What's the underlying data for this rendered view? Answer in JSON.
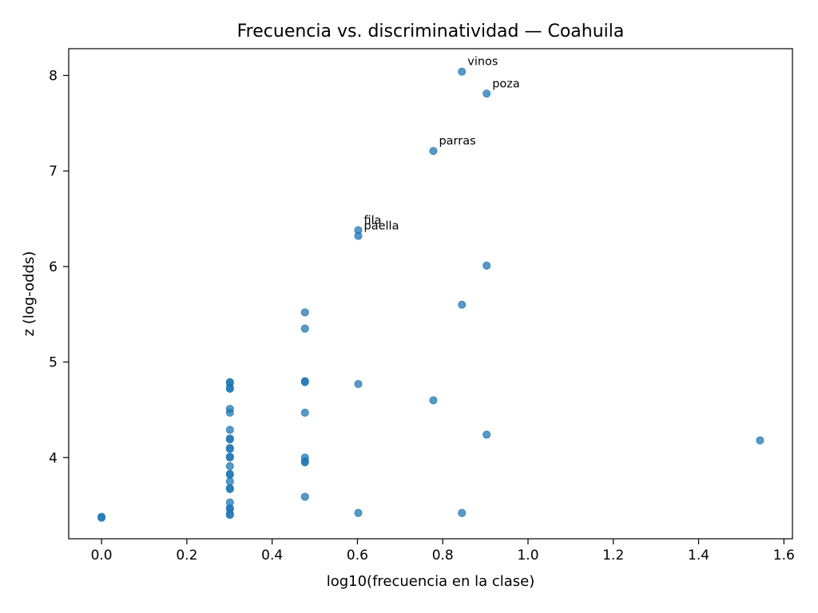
{
  "chart_data": {
    "type": "scatter",
    "title": "Frecuencia vs. discriminatividad — Coahuila",
    "xlabel": "log10(frecuencia en la clase)",
    "ylabel": "z (log-odds)",
    "xlim": [
      -0.077,
      1.62
    ],
    "ylim": [
      3.15,
      8.28
    ],
    "xticks": [
      0.0,
      0.2,
      0.4,
      0.6,
      0.8,
      1.0,
      1.2,
      1.4,
      1.6
    ],
    "xtick_labels": [
      "0.0",
      "0.2",
      "0.4",
      "0.6",
      "0.8",
      "1.0",
      "1.2",
      "1.4",
      "1.6"
    ],
    "yticks": [
      4,
      5,
      6,
      7,
      8
    ],
    "ytick_labels": [
      "4",
      "5",
      "6",
      "7",
      "8"
    ],
    "grid": false,
    "marker_color": "#1f77b4",
    "points": [
      {
        "x": 0.0,
        "y": 3.38
      },
      {
        "x": 0.0,
        "y": 3.37
      },
      {
        "x": 0.301,
        "y": 4.79
      },
      {
        "x": 0.301,
        "y": 4.78
      },
      {
        "x": 0.301,
        "y": 4.73
      },
      {
        "x": 0.301,
        "y": 4.72
      },
      {
        "x": 0.301,
        "y": 4.51
      },
      {
        "x": 0.301,
        "y": 4.47
      },
      {
        "x": 0.301,
        "y": 4.29
      },
      {
        "x": 0.301,
        "y": 4.2
      },
      {
        "x": 0.301,
        "y": 4.19
      },
      {
        "x": 0.301,
        "y": 4.1
      },
      {
        "x": 0.301,
        "y": 4.09
      },
      {
        "x": 0.301,
        "y": 4.01
      },
      {
        "x": 0.301,
        "y": 4.0
      },
      {
        "x": 0.301,
        "y": 3.91
      },
      {
        "x": 0.301,
        "y": 3.83
      },
      {
        "x": 0.301,
        "y": 3.82
      },
      {
        "x": 0.301,
        "y": 3.75
      },
      {
        "x": 0.301,
        "y": 3.68
      },
      {
        "x": 0.301,
        "y": 3.67
      },
      {
        "x": 0.301,
        "y": 3.53
      },
      {
        "x": 0.301,
        "y": 3.47
      },
      {
        "x": 0.301,
        "y": 3.46
      },
      {
        "x": 0.301,
        "y": 3.41
      },
      {
        "x": 0.301,
        "y": 3.4
      },
      {
        "x": 0.477,
        "y": 5.52
      },
      {
        "x": 0.477,
        "y": 5.35
      },
      {
        "x": 0.477,
        "y": 4.8
      },
      {
        "x": 0.477,
        "y": 4.79
      },
      {
        "x": 0.477,
        "y": 4.47
      },
      {
        "x": 0.477,
        "y": 4.0
      },
      {
        "x": 0.477,
        "y": 3.96
      },
      {
        "x": 0.477,
        "y": 3.95
      },
      {
        "x": 0.477,
        "y": 3.59
      },
      {
        "x": 0.602,
        "y": 6.38,
        "label": "fila"
      },
      {
        "x": 0.602,
        "y": 6.32,
        "label": "paella"
      },
      {
        "x": 0.602,
        "y": 4.77
      },
      {
        "x": 0.602,
        "y": 3.42
      },
      {
        "x": 0.778,
        "y": 7.21,
        "label": "parras"
      },
      {
        "x": 0.778,
        "y": 4.6
      },
      {
        "x": 0.845,
        "y": 8.04,
        "label": "vinos"
      },
      {
        "x": 0.845,
        "y": 5.6
      },
      {
        "x": 0.845,
        "y": 3.42
      },
      {
        "x": 0.903,
        "y": 7.81,
        "label": "poza"
      },
      {
        "x": 0.903,
        "y": 6.01
      },
      {
        "x": 0.903,
        "y": 4.24
      },
      {
        "x": 1.544,
        "y": 4.18
      }
    ]
  }
}
